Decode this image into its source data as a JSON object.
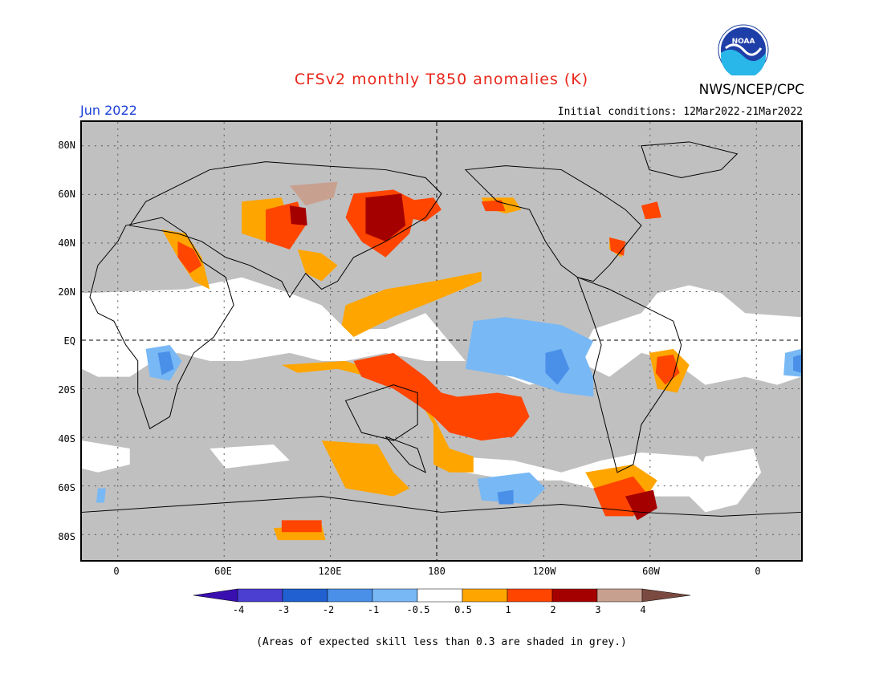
{
  "header": {
    "title": "CFSv2 monthly T850 anomalies (K)",
    "month": "Jun 2022",
    "initial_conditions": "Initial conditions: 12Mar2022-21Mar2022",
    "agency": "NWS/NCEP/CPC",
    "logo_text": "NOAA"
  },
  "axes": {
    "lon_labels": [
      "0",
      "60E",
      "120E",
      "180",
      "120W",
      "60W",
      "0"
    ],
    "lat_labels": [
      "80N",
      "60N",
      "40N",
      "20N",
      "EQ",
      "20S",
      "40S",
      "60S",
      "80S"
    ]
  },
  "colorbar": {
    "labels": [
      "-4",
      "-3",
      "-2",
      "-1",
      "-0.5",
      "0.5",
      "1",
      "2",
      "3",
      "4"
    ],
    "colors": [
      "#3a0fb0",
      "#4a3fd0",
      "#2060d0",
      "#4a90e8",
      "#78b8f5",
      "#ffffff",
      "#ffa500",
      "#ff4500",
      "#a50000",
      "#c8a090",
      "#7a4a40"
    ]
  },
  "map_colors": {
    "low_skill": "#c0c0c0",
    "neutral": "#ffffff",
    "positive_05": "#ffa500",
    "positive_1": "#ff4500",
    "positive_2": "#a50000",
    "positive_3": "#c8a090",
    "negative_05": "#78b8f5",
    "negative_1": "#4a90e8"
  },
  "footnote": "(Areas of expected skill less than 0.3 are shaded in grey.)"
}
